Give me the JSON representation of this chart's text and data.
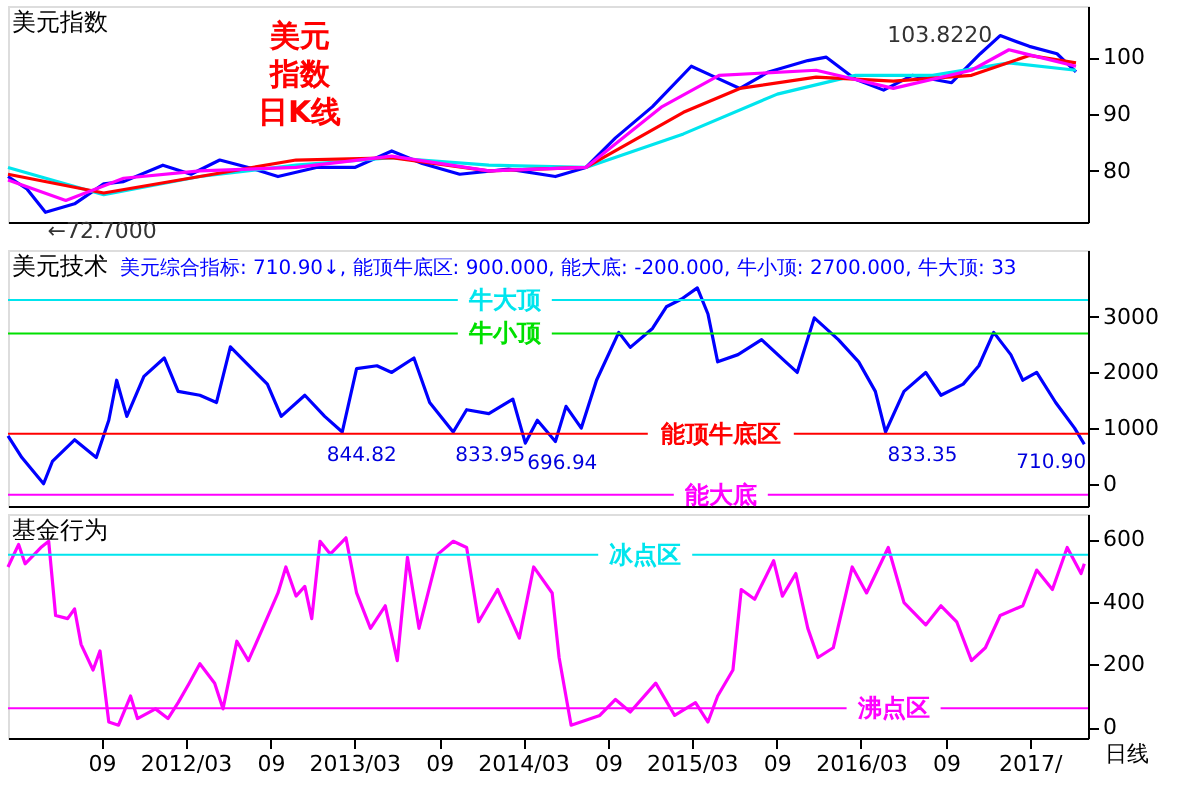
{
  "chart_data": [
    {
      "type": "line",
      "title": "美元指数",
      "annotations": [
        "美元",
        "指数",
        "日K线",
        {
          "text": "103.8220",
          "x": "2016-12-27",
          "y": 103.8
        },
        {
          "text": "←72.7000",
          "x": "2011-05-03",
          "y": 72.7
        }
      ],
      "xlim": [
        "2011-02-11",
        "2017-07-05"
      ],
      "ylim": [
        71,
        109
      ],
      "yticks": [
        80,
        90,
        100
      ],
      "tick_labels": "y",
      "series": [
        {
          "color": "#0000ff",
          "x": [
            "2011-02-11",
            "2011-03-24",
            "2011-05-03",
            "2011-07-05",
            "2011-09-06",
            "2011-10-19",
            "2012-01-12",
            "2012-03-13",
            "2012-05-14",
            "2012-07-15",
            "2012-09-17",
            "2012-12-09",
            "2013-03-02",
            "2013-05-21",
            "2013-07-26",
            "2013-10-15",
            "2014-01-29",
            "2014-05-10",
            "2014-07-15",
            "2014-09-17",
            "2014-12-06",
            "2015-02-28",
            "2015-04-12",
            "2015-06-13",
            "2015-08-14",
            "2015-11-07",
            "2015-12-17",
            "2016-02-18",
            "2016-04-19",
            "2016-06-20",
            "2016-09-13",
            "2016-11-14",
            "2016-12-27",
            "2017-02-28",
            "2017-04-29",
            "2017-06-09"
          ],
          "values": [
            79.0,
            76.8,
            72.7,
            74.2,
            77.7,
            78.1,
            81.0,
            79.4,
            81.9,
            80.6,
            79.0,
            80.6,
            80.6,
            83.5,
            81.3,
            79.4,
            80.3,
            79.0,
            80.6,
            85.8,
            91.3,
            98.4,
            96.8,
            94.5,
            97.4,
            99.4,
            100.0,
            96.1,
            94.2,
            96.8,
            95.5,
            100.6,
            103.8,
            101.9,
            100.6,
            97.4
          ]
        },
        {
          "color": "#00e5ee",
          "x": [
            "2011-02-11",
            "2011-09-06",
            "2012-04-01",
            "2012-10-26",
            "2013-05-21",
            "2013-12-17",
            "2014-07-15",
            "2015-02-11",
            "2015-09-02",
            "2016-02-18",
            "2016-08-03",
            "2017-01-15",
            "2017-06-09"
          ],
          "values": [
            80.6,
            75.8,
            79.0,
            81.0,
            82.3,
            81.0,
            80.6,
            86.5,
            93.5,
            96.8,
            96.8,
            99.0,
            97.7
          ]
        },
        {
          "color": "#ff0000",
          "x": [
            "2011-02-11",
            "2011-09-06",
            "2012-04-01",
            "2012-10-26",
            "2013-05-21",
            "2013-12-17",
            "2014-07-15",
            "2015-02-11",
            "2015-06-13",
            "2015-11-25",
            "2016-05-10",
            "2016-10-26",
            "2017-02-28",
            "2017-06-09"
          ],
          "values": [
            79.4,
            76.1,
            79.0,
            81.9,
            82.3,
            80.0,
            80.6,
            90.3,
            94.5,
            96.5,
            95.8,
            96.8,
            100.3,
            99.0
          ]
        },
        {
          "color": "#ff00ff",
          "x": [
            "2011-02-11",
            "2011-06-16",
            "2011-10-19",
            "2012-04-01",
            "2012-10-26",
            "2013-05-21",
            "2013-12-17",
            "2014-07-15",
            "2014-12-27",
            "2015-04-29",
            "2015-11-25",
            "2016-05-10",
            "2016-10-26",
            "2017-01-15",
            "2017-06-09"
          ],
          "values": [
            78.4,
            74.8,
            78.7,
            80.0,
            80.6,
            82.6,
            80.0,
            80.6,
            91.3,
            96.8,
            97.7,
            94.5,
            97.7,
            101.3,
            98.4
          ]
        }
      ]
    },
    {
      "type": "line",
      "title": "美元技术",
      "subtitle": "美元综合指标: 710.90↓, 能顶牛底区: 900.000, 能大底: -200.000, 牛小顶: 2700.000, 牛大顶: 33",
      "xlim": [
        "2011-02-11",
        "2017-07-05"
      ],
      "ylim": [
        -400,
        4200
      ],
      "yticks": [
        0,
        1000,
        2000,
        3000
      ],
      "tick_labels": "y",
      "ref_lines": [
        {
          "axis": "y",
          "value": 3300,
          "label": "牛大顶",
          "color": "#00e5ee"
        },
        {
          "axis": "y",
          "value": 2700,
          "label": "牛小顶",
          "color": "#00e000"
        },
        {
          "axis": "y",
          "value": 900,
          "label": "能顶牛底区",
          "color": "#ff0000"
        },
        {
          "axis": "y",
          "value": -200,
          "label": "能大底",
          "color": "#ff00ff"
        }
      ],
      "annotations": [
        {
          "text": "844.82",
          "x": "2012-12-27",
          "y": 844.82
        },
        {
          "text": "833.95",
          "x": "2013-10-01",
          "y": 833.95
        },
        {
          "text": "696.94",
          "x": "2014-03-06",
          "y": 696.94
        },
        {
          "text": "833.35",
          "x": "2016-04-23",
          "y": 833.35
        },
        {
          "text": "710.90",
          "x": "2017-06-27",
          "y": 710.9
        }
      ],
      "series": [
        {
          "color": "#0000ff",
          "x": [
            "2011-02-11",
            "2011-03-13",
            "2011-04-29",
            "2011-05-18",
            "2011-07-05",
            "2011-08-21",
            "2011-09-17",
            "2011-10-04",
            "2011-10-26",
            "2011-12-02",
            "2012-01-15",
            "2012-02-14",
            "2012-04-01",
            "2012-05-07",
            "2012-06-06",
            "2012-07-08",
            "2012-08-25",
            "2012-09-24",
            "2012-11-14",
            "2012-12-27",
            "2013-02-03",
            "2013-03-06",
            "2013-04-19",
            "2013-05-21",
            "2013-07-08",
            "2013-08-11",
            "2013-10-01",
            "2013-10-30",
            "2013-12-17",
            "2014-02-07",
            "2014-03-06",
            "2014-04-01",
            "2014-05-10",
            "2014-06-02",
            "2014-07-05",
            "2014-08-07",
            "2014-09-24",
            "2014-10-19",
            "2014-12-06",
            "2015-01-05",
            "2015-02-07",
            "2015-03-13",
            "2015-04-05",
            "2015-04-26",
            "2015-06-09",
            "2015-07-30",
            "2015-09-20",
            "2015-10-15",
            "2015-11-21",
            "2016-01-12",
            "2016-02-25",
            "2016-04-01",
            "2016-04-23",
            "2016-06-02",
            "2016-07-19",
            "2016-08-21",
            "2016-10-08",
            "2016-11-11",
            "2016-12-13",
            "2017-01-19",
            "2017-02-14",
            "2017-03-16",
            "2017-04-26",
            "2017-06-06",
            "2017-06-27"
          ],
          "values": [
            860,
            470,
            0,
            400,
            790,
            470,
            1140,
            1860,
            1210,
            1930,
            2260,
            1660,
            1590,
            1460,
            2460,
            2190,
            1790,
            1210,
            1590,
            1210,
            930,
            2070,
            2120,
            2000,
            2260,
            1460,
            930,
            1330,
            1260,
            1520,
            730,
            1140,
            760,
            1390,
            1000,
            1860,
            2720,
            2450,
            2790,
            3180,
            3320,
            3520,
            3050,
            2190,
            2320,
            2590,
            2190,
            2000,
            2980,
            2590,
            2190,
            1660,
            930,
            1660,
            2000,
            1590,
            1790,
            2120,
            2720,
            2320,
            1860,
            2000,
            1460,
            1000,
            710
          ]
        }
      ]
    },
    {
      "type": "line",
      "title": "基金行为",
      "xlabel": "日线",
      "xlim": [
        "2011-02-11",
        "2017-07-05"
      ],
      "ylim": [
        -35,
        680
      ],
      "yticks": [
        0,
        200,
        400,
        600
      ],
      "xticks": [
        {
          "value": "2011-09",
          "label": "09"
        },
        {
          "value": "2012-03",
          "label": "2012/03"
        },
        {
          "value": "2012-09",
          "label": "09"
        },
        {
          "value": "2013-03",
          "label": "2013/03"
        },
        {
          "value": "2013-09",
          "label": "09"
        },
        {
          "value": "2014-03",
          "label": "2014/03"
        },
        {
          "value": "2014-09",
          "label": "09"
        },
        {
          "value": "2015-03",
          "label": "2015/03"
        },
        {
          "value": "2015-09",
          "label": "09"
        },
        {
          "value": "2016-03",
          "label": "2016/03"
        },
        {
          "value": "2016-09",
          "label": "09"
        },
        {
          "value": "2017-03",
          "label": "2017/"
        }
      ],
      "ref_lines": [
        {
          "axis": "y",
          "value": 550,
          "label": "冰点区",
          "color": "#00e5ee"
        },
        {
          "axis": "y",
          "value": 60,
          "label": "沸点区",
          "color": "#ff00ff"
        }
      ],
      "series": [
        {
          "color": "#ff00ff",
          "x": [
            "2011-02-11",
            "2011-03-06",
            "2011-03-20",
            "2011-04-23",
            "2011-05-10",
            "2011-05-25",
            "2011-06-20",
            "2011-07-05",
            "2011-07-19",
            "2011-08-14",
            "2011-08-29",
            "2011-09-17",
            "2011-10-08",
            "2011-11-03",
            "2011-11-18",
            "2011-12-27",
            "2012-01-23",
            "2012-02-14",
            "2012-03-09",
            "2012-04-01",
            "2012-05-03",
            "2012-05-21",
            "2012-06-20",
            "2012-07-15",
            "2012-08-18",
            "2012-09-17",
            "2012-10-04",
            "2012-10-26",
            "2012-11-14",
            "2012-11-29",
            "2012-12-17",
            "2013-01-08",
            "2013-02-11",
            "2013-03-06",
            "2013-04-05",
            "2013-05-07",
            "2013-06-02",
            "2013-06-24",
            "2013-07-19",
            "2013-08-29",
            "2013-10-01",
            "2013-10-30",
            "2013-11-25",
            "2014-01-05",
            "2014-02-21",
            "2014-03-24",
            "2014-05-03",
            "2014-05-18",
            "2014-06-13",
            "2014-08-14",
            "2014-09-17",
            "2014-10-19",
            "2014-12-13",
            "2015-01-23",
            "2015-03-09",
            "2015-04-05",
            "2015-04-26",
            "2015-05-29",
            "2015-06-16",
            "2015-07-15",
            "2015-08-25",
            "2015-09-13",
            "2015-10-12",
            "2015-11-07",
            "2015-11-29",
            "2016-01-01",
            "2016-02-11",
            "2016-03-13",
            "2016-04-29",
            "2016-06-02",
            "2016-07-19",
            "2016-08-21",
            "2016-09-24",
            "2016-10-26",
            "2016-11-25",
            "2016-12-27",
            "2017-02-14",
            "2017-03-16",
            "2017-04-19",
            "2017-05-21",
            "2017-06-20",
            "2017-06-27"
          ],
          "values": [
            511,
            583,
            521,
            573,
            593,
            356,
            346,
            377,
            264,
            182,
            243,
            16,
            6,
            99,
            27,
            58,
            27,
            78,
            140,
            202,
            140,
            58,
            274,
            212,
            326,
            428,
            511,
            418,
            449,
            346,
            593,
            552,
            604,
            428,
            315,
            387,
            212,
            542,
            315,
            552,
            593,
            573,
            336,
            439,
            284,
            511,
            428,
            222,
            6,
            37,
            88,
            48,
            140,
            37,
            78,
            16,
            99,
            182,
            439,
            408,
            531,
            418,
            490,
            315,
            222,
            253,
            511,
            428,
            573,
            397,
            326,
            387,
            336,
            212,
            253,
            356,
            387,
            501,
            439,
            573,
            490,
            521
          ]
        }
      ]
    }
  ]
}
